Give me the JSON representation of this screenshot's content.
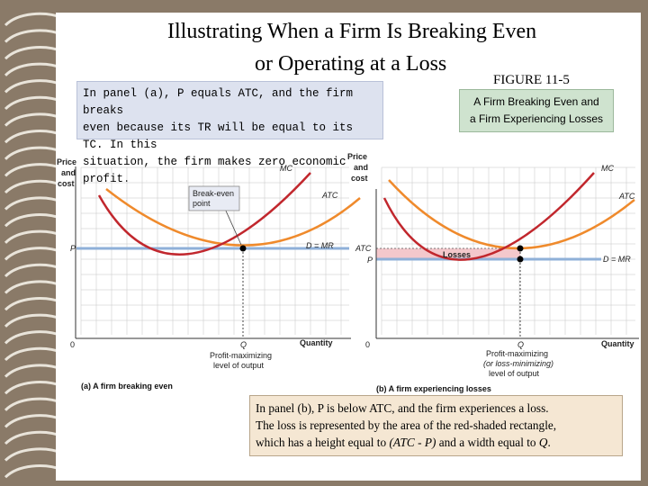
{
  "title": {
    "line1": "Illustrating When a Firm Is Breaking Even",
    "line2": "or Operating at a Loss"
  },
  "figure": {
    "number": "FIGURE 11-5",
    "caption_line1": "A Firm Breaking Even and",
    "caption_line2": "a Firm Experiencing Losses"
  },
  "note_a": {
    "line1": "In panel (a), P equals ATC, and the firm breaks",
    "line2": "even because its TR will be equal to its TC. In this",
    "line3": "situation, the firm makes zero economic profit."
  },
  "note_b": {
    "line1": "In panel (b), P is below ATC, and the firm experiences a loss.",
    "line2": "The loss is represented by the area of the red-shaded rectangle,",
    "line3_pre": "which has a height equal to ",
    "line3_italic": "(ATC - P)",
    "line3_mid": " and a width equal to ",
    "line3_q": "Q",
    "line3_end": "."
  },
  "panel_a": {
    "ylabel_1": "Price",
    "ylabel_2": "and",
    "ylabel_3": "cost",
    "xlabel": "Quantity",
    "origin": "0",
    "p_tick": "P",
    "q_tick": "Q",
    "q_label_1": "Profit-maximizing",
    "q_label_2": "level of output",
    "mc": "MC",
    "atc": "ATC",
    "dmr": "D = MR",
    "callout_1": "Break-even",
    "callout_2": "point",
    "caption": "(a) A firm breaking even"
  },
  "panel_b": {
    "ylabel_1": "Price",
    "ylabel_2": "and",
    "ylabel_3": "cost",
    "xlabel": "Quantity",
    "origin": "0",
    "atc_tick": "ATC",
    "p_tick": "P",
    "q_tick": "Q",
    "q_label_1": "Profit-maximizing",
    "q_label_2": "(or loss-minimizing)",
    "q_label_3": "level of output",
    "mc": "MC",
    "atc": "ATC",
    "dmr": "D = MR",
    "losses": "Losses",
    "caption": "(b) A firm experiencing losses"
  },
  "colors": {
    "mc": "#c1272d",
    "atc": "#ef8a2c",
    "demand": "#8fb0d8",
    "losses": "#f4c8cc",
    "grid": "#c4c4c4"
  }
}
